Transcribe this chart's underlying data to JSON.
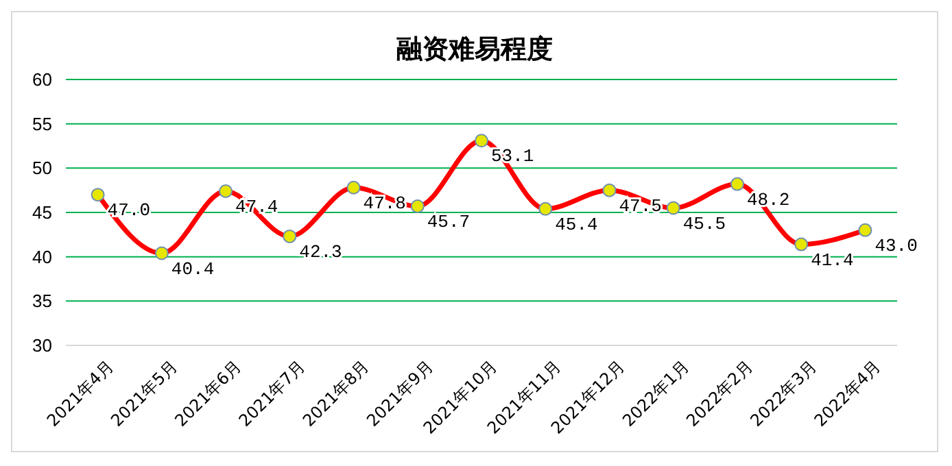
{
  "chart_data": {
    "type": "line",
    "title": "融资难易程度",
    "categories": [
      "2021年4月",
      "2021年5月",
      "2021年6月",
      "2021年7月",
      "2021年8月",
      "2021年9月",
      "2021年10月",
      "2021年11月",
      "2021年12月",
      "2022年1月",
      "2022年2月",
      "2022年3月",
      "2022年4月"
    ],
    "series": [
      {
        "color": "#ff0000",
        "values": [
          47.0,
          40.4,
          47.4,
          42.3,
          47.8,
          45.7,
          53.1,
          45.4,
          47.5,
          45.5,
          48.2,
          41.4,
          43.0
        ],
        "value_labels": [
          "47.0",
          "40.4",
          "47.4",
          "42.3",
          "47.8",
          "45.7",
          "53.1",
          "45.4",
          "47.5",
          "45.5",
          "48.2",
          "41.4",
          "43.0"
        ]
      }
    ],
    "ylim": [
      30,
      60
    ],
    "yticks": [
      30,
      35,
      40,
      45,
      50,
      55,
      60
    ],
    "grid": "y",
    "marker": "circle",
    "line_style": "solid"
  }
}
